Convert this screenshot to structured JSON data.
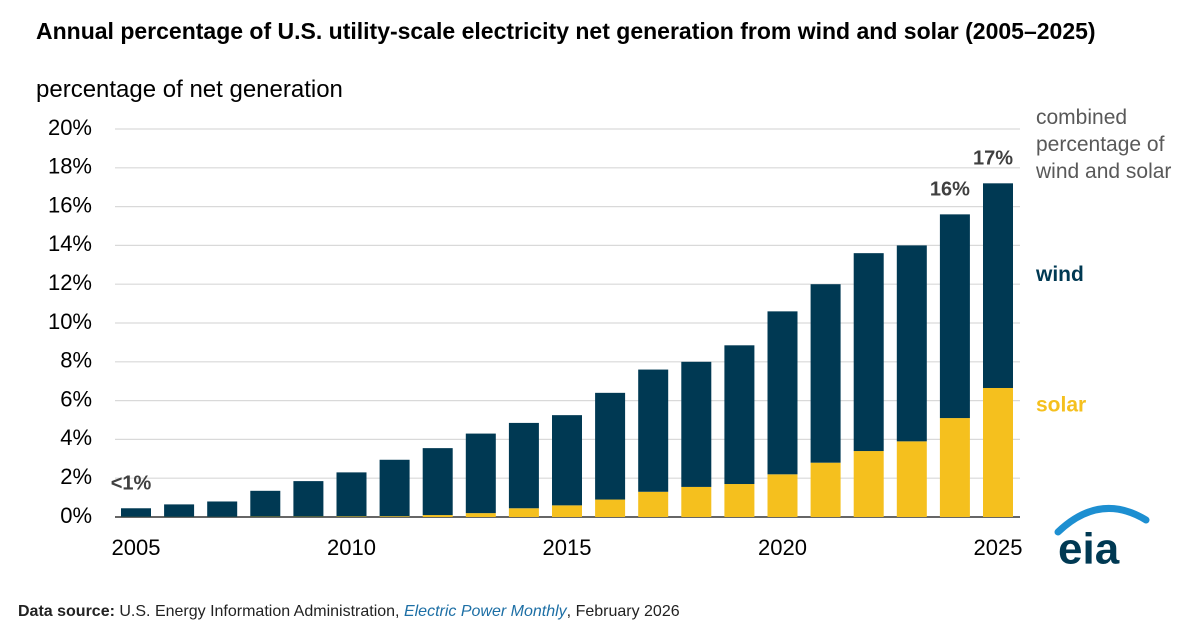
{
  "chart_data": {
    "type": "stacked_bar",
    "title": "Annual percentage of U.S. utility-scale electricity  net generation from wind and solar (2005–2025)",
    "subtitle": "percentage of net generation",
    "categories": [
      2005,
      null,
      null,
      null,
      null,
      2010,
      null,
      null,
      null,
      null,
      2015,
      null,
      null,
      null,
      null,
      2020,
      null,
      null,
      null,
      null,
      2025
    ],
    "series": [
      {
        "name": "solar",
        "color": "#f5c01e",
        "values": [
          0.01,
          0.01,
          0.01,
          0.02,
          0.02,
          0.03,
          0.04,
          0.1,
          0.2,
          0.45,
          0.6,
          0.9,
          1.3,
          1.55,
          1.7,
          2.2,
          2.8,
          3.4,
          3.9,
          5.1,
          6.65
        ]
      },
      {
        "name": "wind",
        "color": "#003953",
        "values": [
          0.44,
          0.64,
          0.79,
          1.33,
          1.83,
          2.27,
          2.91,
          3.45,
          4.1,
          4.4,
          4.65,
          5.5,
          6.3,
          6.45,
          7.15,
          8.4,
          9.2,
          10.2,
          10.1,
          10.5,
          10.55
        ]
      }
    ],
    "combined": {
      "name": "combined percentage of wind and solar",
      "values": [
        0.45,
        0.65,
        0.8,
        1.35,
        1.85,
        2.3,
        2.95,
        3.55,
        4.3,
        4.85,
        5.25,
        6.4,
        7.6,
        8.0,
        8.85,
        10.6,
        12.0,
        13.6,
        14.0,
        15.6,
        17.2
      ],
      "value_labels": [
        "<1%",
        null,
        null,
        null,
        null,
        null,
        null,
        null,
        null,
        null,
        null,
        null,
        null,
        null,
        null,
        null,
        null,
        null,
        null,
        "16%",
        "17%"
      ]
    },
    "ylim": [
      0,
      20
    ],
    "yticks": [
      {
        "value": 0,
        "label": "0%"
      },
      {
        "value": 2,
        "label": "2%"
      },
      {
        "value": 4,
        "label": "4%"
      },
      {
        "value": 6,
        "label": "6%"
      },
      {
        "value": 8,
        "label": "8%"
      },
      {
        "value": 10,
        "label": "10%"
      },
      {
        "value": 12,
        "label": "12%"
      },
      {
        "value": 14,
        "label": "14%"
      },
      {
        "value": 16,
        "label": "16%"
      },
      {
        "value": 18,
        "label": "18%"
      },
      {
        "value": 20,
        "label": "20%"
      }
    ],
    "grid": true,
    "source": {
      "label": "Data source:",
      "text": "U.S. Energy Information Administration,",
      "publication": "Electric Power Monthly",
      "date": ", February 2026"
    },
    "logo": "eia"
  }
}
